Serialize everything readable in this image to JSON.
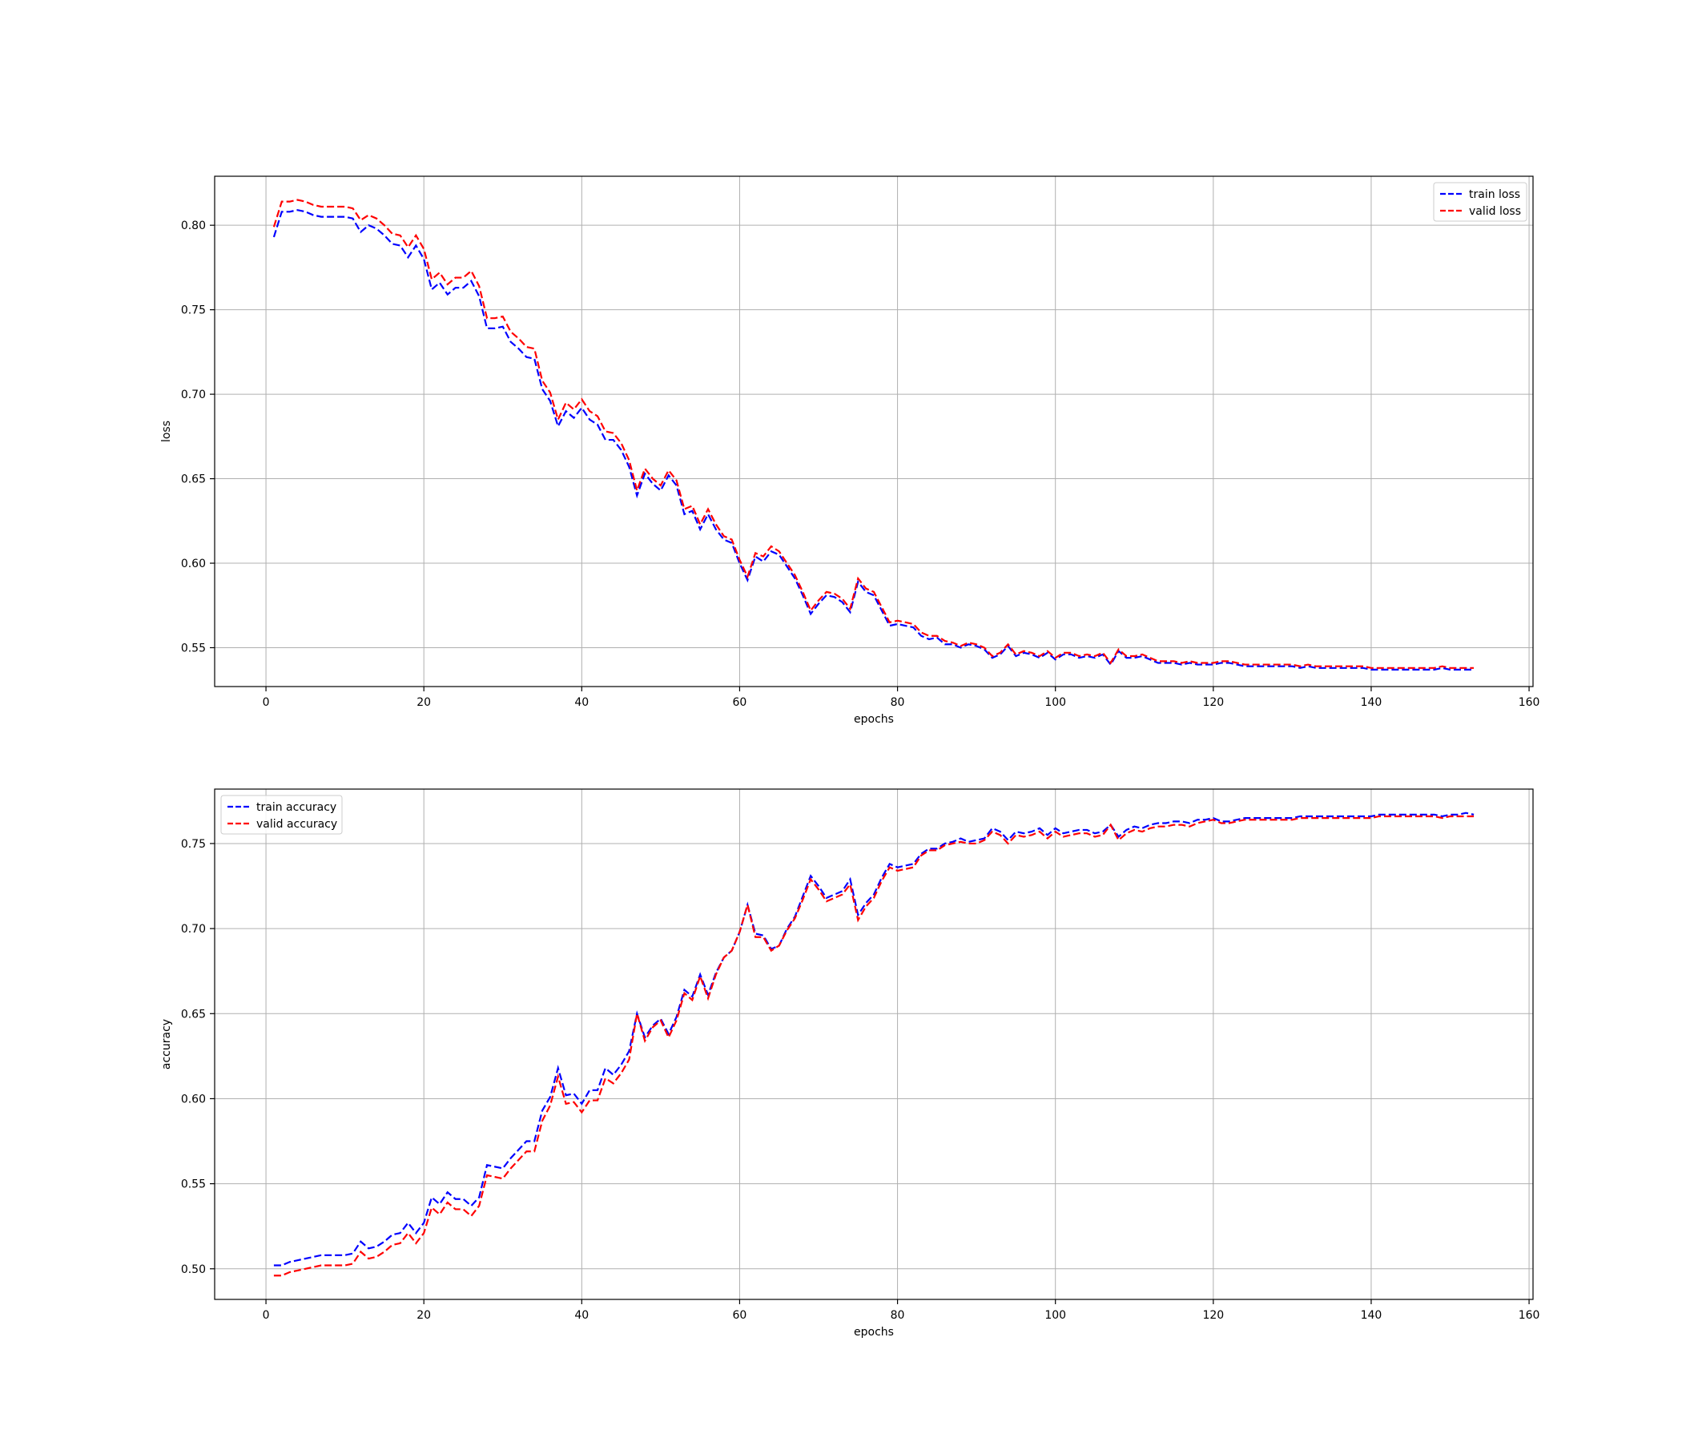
{
  "chart_data": [
    {
      "type": "line",
      "xlabel": "epochs",
      "ylabel": "loss",
      "xlim": [
        -6.5,
        160.5
      ],
      "ylim": [
        0.527,
        0.829
      ],
      "xticks": [
        0,
        20,
        40,
        60,
        80,
        100,
        120,
        140,
        160
      ],
      "yticks": [
        0.55,
        0.6,
        0.65,
        0.7,
        0.75,
        0.8
      ],
      "ytick_format": 2,
      "grid": true,
      "legend_position": "upper right",
      "x": [
        1,
        2,
        3,
        4,
        5,
        6,
        7,
        8,
        9,
        10,
        11,
        12,
        13,
        14,
        15,
        16,
        17,
        18,
        19,
        20,
        21,
        22,
        23,
        24,
        25,
        26,
        27,
        28,
        29,
        30,
        31,
        32,
        33,
        34,
        35,
        36,
        37,
        38,
        39,
        40,
        41,
        42,
        43,
        44,
        45,
        46,
        47,
        48,
        49,
        50,
        51,
        52,
        53,
        54,
        55,
        56,
        57,
        58,
        59,
        60,
        61,
        62,
        63,
        64,
        65,
        66,
        67,
        68,
        69,
        70,
        71,
        72,
        73,
        74,
        75,
        76,
        77,
        78,
        79,
        80,
        81,
        82,
        83,
        84,
        85,
        86,
        87,
        88,
        89,
        90,
        91,
        92,
        93,
        94,
        95,
        96,
        97,
        98,
        99,
        100,
        101,
        102,
        103,
        104,
        105,
        106,
        107,
        108,
        109,
        110,
        111,
        112,
        113,
        114,
        115,
        116,
        117,
        118,
        119,
        120,
        121,
        122,
        123,
        124,
        125,
        126,
        127,
        128,
        129,
        130,
        131,
        132,
        133,
        134,
        135,
        136,
        137,
        138,
        139,
        140,
        141,
        142,
        143,
        144,
        145,
        146,
        147,
        148,
        149,
        150,
        151,
        152,
        153
      ],
      "series": [
        {
          "name": "train loss",
          "color": "#0000ff",
          "values": [
            0.793,
            0.808,
            0.808,
            0.809,
            0.808,
            0.806,
            0.805,
            0.805,
            0.805,
            0.805,
            0.804,
            0.796,
            0.8,
            0.798,
            0.794,
            0.789,
            0.788,
            0.781,
            0.788,
            0.78,
            0.762,
            0.766,
            0.759,
            0.763,
            0.763,
            0.767,
            0.758,
            0.739,
            0.739,
            0.74,
            0.731,
            0.727,
            0.722,
            0.721,
            0.703,
            0.696,
            0.681,
            0.69,
            0.686,
            0.692,
            0.685,
            0.682,
            0.673,
            0.673,
            0.667,
            0.657,
            0.64,
            0.653,
            0.647,
            0.643,
            0.652,
            0.646,
            0.629,
            0.631,
            0.62,
            0.629,
            0.62,
            0.614,
            0.612,
            0.6,
            0.59,
            0.604,
            0.601,
            0.607,
            0.605,
            0.598,
            0.591,
            0.581,
            0.57,
            0.576,
            0.581,
            0.58,
            0.577,
            0.571,
            0.589,
            0.583,
            0.581,
            0.572,
            0.563,
            0.564,
            0.563,
            0.562,
            0.557,
            0.555,
            0.556,
            0.552,
            0.552,
            0.55,
            0.552,
            0.551,
            0.549,
            0.544,
            0.546,
            0.551,
            0.545,
            0.547,
            0.546,
            0.544,
            0.547,
            0.543,
            0.546,
            0.546,
            0.544,
            0.545,
            0.544,
            0.546,
            0.54,
            0.548,
            0.544,
            0.544,
            0.545,
            0.543,
            0.541,
            0.541,
            0.541,
            0.54,
            0.541,
            0.54,
            0.54,
            0.54,
            0.541,
            0.541,
            0.54,
            0.539,
            0.539,
            0.539,
            0.539,
            0.539,
            0.539,
            0.539,
            0.538,
            0.539,
            0.538,
            0.538,
            0.538,
            0.538,
            0.538,
            0.538,
            0.538,
            0.537,
            0.537,
            0.537,
            0.537,
            0.537,
            0.537,
            0.537,
            0.537,
            0.537,
            0.538,
            0.537,
            0.537,
            0.537,
            0.537
          ]
        },
        {
          "name": "valid loss",
          "color": "#ff0000",
          "values": [
            0.799,
            0.814,
            0.814,
            0.815,
            0.814,
            0.812,
            0.811,
            0.811,
            0.811,
            0.811,
            0.81,
            0.803,
            0.806,
            0.804,
            0.8,
            0.795,
            0.794,
            0.787,
            0.794,
            0.786,
            0.768,
            0.772,
            0.765,
            0.769,
            0.769,
            0.773,
            0.764,
            0.745,
            0.745,
            0.746,
            0.737,
            0.733,
            0.728,
            0.727,
            0.708,
            0.701,
            0.685,
            0.695,
            0.691,
            0.697,
            0.69,
            0.687,
            0.678,
            0.677,
            0.671,
            0.661,
            0.643,
            0.656,
            0.65,
            0.646,
            0.655,
            0.649,
            0.632,
            0.634,
            0.623,
            0.632,
            0.623,
            0.616,
            0.614,
            0.602,
            0.592,
            0.606,
            0.604,
            0.61,
            0.607,
            0.6,
            0.593,
            0.583,
            0.572,
            0.578,
            0.583,
            0.582,
            0.579,
            0.573,
            0.591,
            0.585,
            0.583,
            0.574,
            0.565,
            0.566,
            0.565,
            0.564,
            0.559,
            0.557,
            0.557,
            0.554,
            0.553,
            0.551,
            0.553,
            0.552,
            0.55,
            0.545,
            0.547,
            0.552,
            0.546,
            0.548,
            0.547,
            0.545,
            0.548,
            0.544,
            0.547,
            0.547,
            0.545,
            0.546,
            0.545,
            0.547,
            0.541,
            0.549,
            0.545,
            0.545,
            0.546,
            0.544,
            0.542,
            0.542,
            0.542,
            0.541,
            0.542,
            0.541,
            0.541,
            0.541,
            0.542,
            0.542,
            0.541,
            0.54,
            0.54,
            0.54,
            0.54,
            0.54,
            0.54,
            0.54,
            0.539,
            0.54,
            0.539,
            0.539,
            0.539,
            0.539,
            0.539,
            0.539,
            0.539,
            0.538,
            0.538,
            0.538,
            0.538,
            0.538,
            0.538,
            0.538,
            0.538,
            0.538,
            0.539,
            0.538,
            0.538,
            0.538,
            0.538
          ]
        }
      ]
    },
    {
      "type": "line",
      "xlabel": "epochs",
      "ylabel": "accuracy",
      "xlim": [
        -6.5,
        160.5
      ],
      "ylim": [
        0.482,
        0.782
      ],
      "xticks": [
        0,
        20,
        40,
        60,
        80,
        100,
        120,
        140,
        160
      ],
      "yticks": [
        0.5,
        0.55,
        0.6,
        0.65,
        0.7,
        0.75
      ],
      "ytick_format": 2,
      "grid": true,
      "legend_position": "upper left",
      "x": [
        1,
        2,
        3,
        4,
        5,
        6,
        7,
        8,
        9,
        10,
        11,
        12,
        13,
        14,
        15,
        16,
        17,
        18,
        19,
        20,
        21,
        22,
        23,
        24,
        25,
        26,
        27,
        28,
        29,
        30,
        31,
        32,
        33,
        34,
        35,
        36,
        37,
        38,
        39,
        40,
        41,
        42,
        43,
        44,
        45,
        46,
        47,
        48,
        49,
        50,
        51,
        52,
        53,
        54,
        55,
        56,
        57,
        58,
        59,
        60,
        61,
        62,
        63,
        64,
        65,
        66,
        67,
        68,
        69,
        70,
        71,
        72,
        73,
        74,
        75,
        76,
        77,
        78,
        79,
        80,
        81,
        82,
        83,
        84,
        85,
        86,
        87,
        88,
        89,
        90,
        91,
        92,
        93,
        94,
        95,
        96,
        97,
        98,
        99,
        100,
        101,
        102,
        103,
        104,
        105,
        106,
        107,
        108,
        109,
        110,
        111,
        112,
        113,
        114,
        115,
        116,
        117,
        118,
        119,
        120,
        121,
        122,
        123,
        124,
        125,
        126,
        127,
        128,
        129,
        130,
        131,
        132,
        133,
        134,
        135,
        136,
        137,
        138,
        139,
        140,
        141,
        142,
        143,
        144,
        145,
        146,
        147,
        148,
        149,
        150,
        151,
        152,
        153
      ],
      "series": [
        {
          "name": "train accuracy",
          "color": "#0000ff",
          "values": [
            0.502,
            0.502,
            0.504,
            0.505,
            0.506,
            0.507,
            0.508,
            0.508,
            0.508,
            0.508,
            0.509,
            0.516,
            0.512,
            0.513,
            0.516,
            0.52,
            0.521,
            0.527,
            0.521,
            0.527,
            0.542,
            0.538,
            0.545,
            0.541,
            0.541,
            0.537,
            0.542,
            0.561,
            0.56,
            0.559,
            0.565,
            0.57,
            0.575,
            0.575,
            0.593,
            0.601,
            0.618,
            0.602,
            0.603,
            0.597,
            0.605,
            0.605,
            0.618,
            0.614,
            0.62,
            0.628,
            0.65,
            0.636,
            0.643,
            0.647,
            0.638,
            0.648,
            0.664,
            0.66,
            0.673,
            0.661,
            0.674,
            0.683,
            0.687,
            0.698,
            0.714,
            0.697,
            0.696,
            0.688,
            0.69,
            0.7,
            0.707,
            0.719,
            0.731,
            0.725,
            0.718,
            0.72,
            0.722,
            0.729,
            0.708,
            0.715,
            0.72,
            0.73,
            0.738,
            0.736,
            0.737,
            0.738,
            0.744,
            0.747,
            0.747,
            0.75,
            0.751,
            0.753,
            0.751,
            0.752,
            0.753,
            0.759,
            0.757,
            0.752,
            0.757,
            0.756,
            0.757,
            0.759,
            0.755,
            0.759,
            0.756,
            0.757,
            0.758,
            0.758,
            0.756,
            0.757,
            0.761,
            0.754,
            0.758,
            0.76,
            0.759,
            0.761,
            0.762,
            0.762,
            0.763,
            0.763,
            0.762,
            0.764,
            0.764,
            0.765,
            0.763,
            0.763,
            0.764,
            0.765,
            0.765,
            0.765,
            0.765,
            0.765,
            0.765,
            0.765,
            0.766,
            0.766,
            0.766,
            0.766,
            0.766,
            0.766,
            0.766,
            0.766,
            0.766,
            0.766,
            0.767,
            0.767,
            0.767,
            0.767,
            0.767,
            0.767,
            0.767,
            0.767,
            0.766,
            0.767,
            0.767,
            0.768,
            0.767
          ]
        },
        {
          "name": "valid accuracy",
          "color": "#ff0000",
          "values": [
            0.496,
            0.496,
            0.498,
            0.499,
            0.5,
            0.501,
            0.502,
            0.502,
            0.502,
            0.502,
            0.503,
            0.51,
            0.506,
            0.507,
            0.51,
            0.514,
            0.515,
            0.521,
            0.515,
            0.521,
            0.536,
            0.532,
            0.539,
            0.535,
            0.535,
            0.531,
            0.537,
            0.555,
            0.554,
            0.553,
            0.559,
            0.564,
            0.569,
            0.569,
            0.587,
            0.596,
            0.613,
            0.597,
            0.598,
            0.592,
            0.599,
            0.599,
            0.612,
            0.609,
            0.615,
            0.623,
            0.65,
            0.634,
            0.642,
            0.646,
            0.636,
            0.646,
            0.662,
            0.658,
            0.672,
            0.659,
            0.673,
            0.683,
            0.687,
            0.698,
            0.714,
            0.695,
            0.695,
            0.687,
            0.69,
            0.699,
            0.706,
            0.717,
            0.729,
            0.723,
            0.716,
            0.718,
            0.72,
            0.726,
            0.705,
            0.713,
            0.718,
            0.728,
            0.736,
            0.734,
            0.735,
            0.736,
            0.743,
            0.746,
            0.746,
            0.749,
            0.75,
            0.751,
            0.75,
            0.75,
            0.752,
            0.757,
            0.755,
            0.75,
            0.755,
            0.754,
            0.755,
            0.757,
            0.753,
            0.757,
            0.754,
            0.755,
            0.756,
            0.756,
            0.754,
            0.755,
            0.761,
            0.752,
            0.756,
            0.758,
            0.757,
            0.759,
            0.76,
            0.76,
            0.761,
            0.761,
            0.76,
            0.762,
            0.763,
            0.764,
            0.762,
            0.762,
            0.763,
            0.764,
            0.764,
            0.764,
            0.764,
            0.764,
            0.764,
            0.764,
            0.765,
            0.765,
            0.765,
            0.765,
            0.765,
            0.765,
            0.765,
            0.765,
            0.765,
            0.765,
            0.766,
            0.766,
            0.766,
            0.766,
            0.766,
            0.766,
            0.766,
            0.766,
            0.765,
            0.766,
            0.766,
            0.766,
            0.766
          ]
        }
      ]
    }
  ]
}
